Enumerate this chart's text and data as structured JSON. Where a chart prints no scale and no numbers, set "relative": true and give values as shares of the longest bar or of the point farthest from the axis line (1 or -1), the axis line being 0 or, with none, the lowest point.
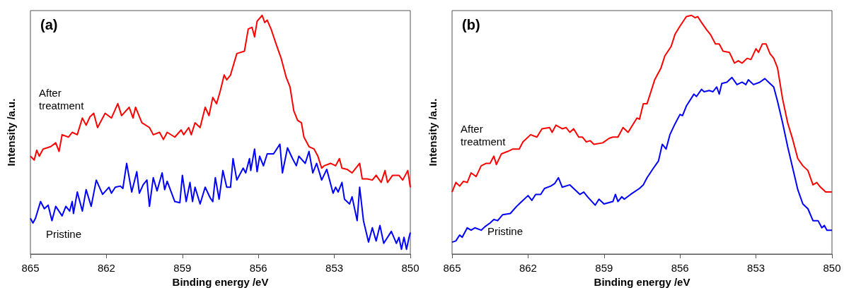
{
  "chart_data": [
    {
      "type": "line",
      "title": "(a)",
      "xlabel": "Binding energy /eV",
      "ylabel": "Intensity /a.u.",
      "relative": true,
      "xlim": [
        865,
        850
      ],
      "xticks": [
        865,
        862,
        859,
        856,
        853,
        850
      ],
      "series": [
        {
          "name": "After treatment",
          "color": "#ff0000",
          "x": [
            865,
            864.85,
            864.75,
            864.65,
            864.5,
            864.2,
            864.0,
            863.87,
            863.75,
            863.5,
            863.35,
            863.15,
            862.95,
            862.8,
            862.65,
            862.5,
            862.35,
            862.05,
            861.8,
            861.55,
            861.4,
            861.1,
            860.95,
            860.85,
            860.6,
            860.3,
            860.15,
            859.9,
            859.75,
            859.6,
            859.3,
            859.05,
            858.95,
            858.75,
            858.65,
            858.5,
            858.3,
            858.1,
            857.95,
            857.8,
            857.65,
            857.5,
            857.35,
            857.25,
            857.1,
            856.85,
            856.55,
            856.4,
            856.25,
            856.15,
            856.05,
            855.85,
            855.75,
            855.65,
            855.5,
            855.3,
            855.1,
            854.9,
            854.75,
            854.6,
            854.45,
            854.3,
            854.2,
            854.0,
            853.8,
            853.65,
            853.5,
            853.4,
            853.15,
            852.95,
            852.8,
            852.7,
            852.5,
            852.3,
            852.15,
            852.0,
            851.9,
            851.7,
            851.5,
            851.35,
            851.15,
            851.0,
            850.9,
            850.7,
            850.45,
            850.3,
            850.1,
            850.0
          ],
          "values": [
            0.41,
            0.394,
            0.435,
            0.41,
            0.44,
            0.45,
            0.466,
            0.43,
            0.5,
            0.49,
            0.51,
            0.5,
            0.57,
            0.54,
            0.575,
            0.59,
            0.53,
            0.59,
            0.57,
            0.63,
            0.58,
            0.615,
            0.57,
            0.615,
            0.55,
            0.53,
            0.5,
            0.51,
            0.48,
            0.51,
            0.49,
            0.52,
            0.5,
            0.53,
            0.5,
            0.55,
            0.53,
            0.615,
            0.58,
            0.656,
            0.63,
            0.685,
            0.75,
            0.73,
            0.75,
            0.84,
            0.85,
            0.943,
            0.95,
            0.91,
            0.975,
            1.0,
            0.97,
            0.98,
            0.943,
            0.88,
            0.82,
            0.74,
            0.7,
            0.6,
            0.56,
            0.55,
            0.49,
            0.45,
            0.44,
            0.41,
            0.36,
            0.37,
            0.38,
            0.37,
            0.4,
            0.36,
            0.355,
            0.34,
            0.36,
            0.38,
            0.315,
            0.315,
            0.31,
            0.33,
            0.3,
            0.35,
            0.3,
            0.33,
            0.33,
            0.31,
            0.35,
            0.28
          ]
        },
        {
          "name": "Pristine",
          "color": "#0000ff",
          "x": [
            865,
            864.9,
            864.8,
            864.6,
            864.45,
            864.3,
            864.15,
            864.0,
            863.75,
            863.6,
            863.45,
            863.35,
            863.3,
            863.15,
            862.95,
            862.8,
            862.6,
            862.4,
            862.15,
            861.9,
            861.8,
            861.65,
            861.45,
            861.35,
            861.2,
            861.0,
            860.8,
            860.7,
            860.55,
            860.4,
            860.3,
            860.15,
            860.0,
            859.8,
            859.7,
            859.6,
            859.3,
            859.1,
            859.0,
            858.85,
            858.7,
            858.6,
            858.5,
            858.3,
            858.1,
            857.9,
            857.8,
            857.7,
            857.55,
            857.4,
            857.25,
            857.1,
            857.0,
            856.85,
            856.6,
            856.5,
            856.35,
            856.3,
            856.15,
            856.05,
            855.95,
            855.8,
            855.65,
            855.4,
            855.15,
            855.05,
            854.85,
            854.65,
            854.5,
            854.4,
            854.15,
            854.0,
            853.85,
            853.7,
            853.5,
            853.3,
            853.05,
            852.95,
            852.85,
            852.7,
            852.6,
            852.4,
            852.3,
            852.1,
            852.0,
            851.85,
            851.65,
            851.5,
            851.35,
            851.2,
            851.05,
            850.75,
            850.55,
            850.45,
            850.35,
            850.25,
            850.15,
            850.05,
            850.0
          ],
          "values": [
            0.15,
            0.13,
            0.15,
            0.22,
            0.19,
            0.205,
            0.14,
            0.2,
            0.16,
            0.2,
            0.18,
            0.22,
            0.17,
            0.26,
            0.18,
            0.27,
            0.2,
            0.31,
            0.25,
            0.28,
            0.255,
            0.28,
            0.285,
            0.275,
            0.38,
            0.26,
            0.345,
            0.255,
            0.29,
            0.31,
            0.2,
            0.32,
            0.265,
            0.34,
            0.27,
            0.305,
            0.22,
            0.215,
            0.33,
            0.22,
            0.3,
            0.22,
            0.28,
            0.21,
            0.28,
            0.235,
            0.22,
            0.32,
            0.23,
            0.35,
            0.28,
            0.28,
            0.4,
            0.31,
            0.36,
            0.34,
            0.4,
            0.35,
            0.44,
            0.345,
            0.41,
            0.37,
            0.42,
            0.42,
            0.46,
            0.34,
            0.445,
            0.4,
            0.37,
            0.41,
            0.38,
            0.43,
            0.34,
            0.38,
            0.31,
            0.355,
            0.255,
            0.28,
            0.26,
            0.3,
            0.23,
            0.21,
            0.24,
            0.14,
            0.28,
            0.14,
            0.05,
            0.11,
            0.055,
            0.12,
            0.045,
            0.095,
            0.045,
            0.07,
            0.02,
            0.07,
            0.02,
            0.07,
            0.09
          ]
        }
      ]
    },
    {
      "type": "line",
      "title": "(b)",
      "xlabel": "Binding energy /eV",
      "ylabel": "Intensity /a.u.",
      "relative": true,
      "xlim": [
        865,
        850
      ],
      "xticks": [
        865,
        862,
        859,
        856,
        853,
        850
      ],
      "series": [
        {
          "name": "After treatment",
          "color": "#ff0000",
          "x": [
            865,
            864.85,
            864.7,
            864.55,
            864.4,
            864.25,
            864.05,
            863.85,
            863.65,
            863.5,
            863.35,
            863.25,
            863.05,
            862.8,
            862.6,
            862.35,
            862.2,
            861.9,
            861.65,
            861.45,
            861.15,
            861.05,
            860.9,
            860.65,
            860.5,
            860.35,
            860.2,
            860.0,
            859.85,
            859.7,
            859.55,
            859.4,
            859.05,
            858.8,
            858.65,
            858.45,
            858.25,
            858.05,
            857.7,
            857.6,
            857.45,
            857.3,
            857.15,
            857.0,
            856.75,
            856.6,
            856.35,
            856.2,
            856.0,
            855.75,
            855.55,
            855.4,
            855.3,
            855.15,
            854.95,
            854.8,
            854.6,
            854.45,
            854.3,
            854.05,
            853.85,
            853.7,
            853.55,
            853.35,
            853.2,
            853.0,
            852.9,
            852.75,
            852.6,
            852.45,
            852.3,
            852.15,
            851.95,
            851.75,
            851.55,
            851.35,
            851.15,
            850.95,
            850.75,
            850.6,
            850.45,
            850.25,
            850.0
          ],
          "values": [
            0.26,
            0.3,
            0.285,
            0.305,
            0.3,
            0.34,
            0.325,
            0.37,
            0.38,
            0.38,
            0.41,
            0.375,
            0.42,
            0.43,
            0.44,
            0.44,
            0.47,
            0.5,
            0.49,
            0.525,
            0.53,
            0.51,
            0.54,
            0.525,
            0.53,
            0.51,
            0.525,
            0.49,
            0.49,
            0.47,
            0.475,
            0.46,
            0.466,
            0.485,
            0.49,
            0.49,
            0.53,
            0.51,
            0.57,
            0.565,
            0.63,
            0.63,
            0.68,
            0.73,
            0.78,
            0.83,
            0.87,
            0.92,
            0.955,
            0.995,
            1.0,
            0.99,
            0.995,
            0.97,
            0.94,
            0.92,
            0.88,
            0.88,
            0.85,
            0.845,
            0.8,
            0.81,
            0.8,
            0.82,
            0.815,
            0.86,
            0.845,
            0.88,
            0.88,
            0.84,
            0.82,
            0.78,
            0.65,
            0.55,
            0.48,
            0.4,
            0.37,
            0.35,
            0.29,
            0.3,
            0.28,
            0.26,
            0.26
          ]
        },
        {
          "name": "Pristine",
          "color": "#0000ff",
          "x": [
            865,
            864.85,
            864.7,
            864.6,
            864.4,
            864.25,
            864.1,
            863.85,
            863.7,
            863.5,
            863.35,
            863.2,
            863.0,
            862.7,
            862.45,
            862.3,
            862.0,
            861.85,
            861.7,
            861.5,
            861.35,
            861.1,
            860.95,
            860.8,
            860.65,
            860.35,
            860.15,
            859.95,
            859.8,
            859.65,
            859.35,
            859.2,
            859.0,
            858.65,
            858.55,
            858.45,
            858.3,
            858.2,
            857.95,
            857.6,
            857.45,
            857.3,
            857.05,
            856.85,
            856.7,
            856.55,
            856.4,
            856.2,
            856.0,
            855.9,
            855.75,
            855.45,
            855.35,
            855.15,
            855.05,
            854.85,
            854.7,
            854.55,
            854.45,
            854.35,
            854.15,
            853.95,
            853.75,
            853.55,
            853.4,
            853.3,
            853.1,
            852.85,
            852.65,
            852.45,
            852.3,
            852.15,
            851.95,
            851.75,
            851.55,
            851.35,
            851.15,
            850.95,
            850.75,
            850.55,
            850.4,
            850.3,
            850.2,
            850.0
          ],
          "values": [
            0.05,
            0.055,
            0.08,
            0.07,
            0.11,
            0.1,
            0.11,
            0.1,
            0.115,
            0.13,
            0.145,
            0.14,
            0.165,
            0.17,
            0.2,
            0.215,
            0.245,
            0.225,
            0.25,
            0.25,
            0.275,
            0.285,
            0.295,
            0.32,
            0.28,
            0.29,
            0.27,
            0.25,
            0.26,
            0.24,
            0.205,
            0.23,
            0.21,
            0.22,
            0.25,
            0.22,
            0.24,
            0.23,
            0.25,
            0.275,
            0.29,
            0.32,
            0.36,
            0.39,
            0.46,
            0.44,
            0.5,
            0.545,
            0.585,
            0.58,
            0.62,
            0.67,
            0.66,
            0.69,
            0.68,
            0.685,
            0.68,
            0.7,
            0.67,
            0.715,
            0.72,
            0.74,
            0.71,
            0.72,
            0.71,
            0.73,
            0.71,
            0.72,
            0.735,
            0.715,
            0.7,
            0.64,
            0.55,
            0.45,
            0.36,
            0.27,
            0.21,
            0.19,
            0.14,
            0.14,
            0.11,
            0.12,
            0.1,
            0.1
          ]
        }
      ]
    }
  ]
}
